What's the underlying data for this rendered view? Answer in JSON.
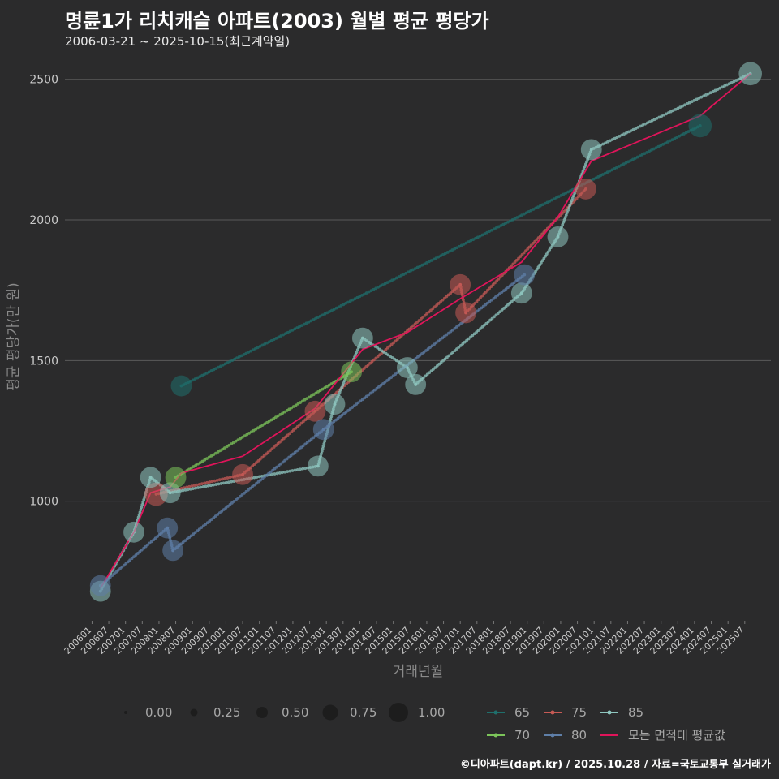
{
  "title": "명륜1가 리치캐슬 아파트(2003) 월별 평균 평당가",
  "subtitle": "2006-03-21 ~ 2025-10-15(최근계약일)",
  "footer": "©디아파트(dapt.kr) / 2025.10.28 / 자료=국토교통부 실거래가",
  "chart_data": {
    "type": "line",
    "xlabel": "거래년월",
    "ylabel": "평균 평당가(만 원)",
    "ylim": [
      575,
      2580
    ],
    "yticks": [
      1000,
      1500,
      2000,
      2500
    ],
    "xlim": [
      "200601",
      "202512"
    ],
    "xticks": [
      "200601",
      "200607",
      "200701",
      "200707",
      "200801",
      "200807",
      "200901",
      "200907",
      "201001",
      "201007",
      "201101",
      "201107",
      "201201",
      "201207",
      "201301",
      "201307",
      "201401",
      "201407",
      "201501",
      "201507",
      "201601",
      "201607",
      "201701",
      "201707",
      "201801",
      "201807",
      "201901",
      "201907",
      "202001",
      "202007",
      "202101",
      "202107",
      "202201",
      "202207",
      "202301",
      "202307",
      "202401",
      "202407",
      "202501",
      "202507"
    ],
    "size_legend": {
      "title": "",
      "values": [
        "0.00",
        "0.25",
        "0.50",
        "0.75",
        "1.00"
      ]
    },
    "series": [
      {
        "name": "65",
        "color": "#1f6f6c",
        "points": [
          {
            "x": "200809",
            "y": 1410,
            "s": 0.6
          },
          {
            "x": "202403",
            "y": 2335,
            "s": 0.7
          }
        ]
      },
      {
        "name": "75",
        "color": "#c65a55",
        "points": [
          {
            "x": "200712",
            "y": 1025,
            "s": 0.7
          },
          {
            "x": "201007",
            "y": 1095,
            "s": 0.6
          },
          {
            "x": "201209",
            "y": 1320,
            "s": 0.6
          },
          {
            "x": "201701",
            "y": 1770,
            "s": 0.6
          },
          {
            "x": "201703",
            "y": 1670,
            "s": 0.6
          },
          {
            "x": "202010",
            "y": 2110,
            "s": 0.6
          }
        ]
      },
      {
        "name": "85",
        "color": "#8fc7c0",
        "points": [
          {
            "x": "200604",
            "y": 680,
            "s": 0.6
          },
          {
            "x": "200704",
            "y": 890,
            "s": 0.6
          },
          {
            "x": "200710",
            "y": 1085,
            "s": 0.6
          },
          {
            "x": "200805",
            "y": 1030,
            "s": 0.6
          },
          {
            "x": "201210",
            "y": 1125,
            "s": 0.6
          },
          {
            "x": "201304",
            "y": 1345,
            "s": 0.6
          },
          {
            "x": "201402",
            "y": 1580,
            "s": 0.6
          },
          {
            "x": "201506",
            "y": 1475,
            "s": 0.6
          },
          {
            "x": "201509",
            "y": 1415,
            "s": 0.6
          },
          {
            "x": "201811",
            "y": 1740,
            "s": 0.6
          },
          {
            "x": "201912",
            "y": 1940,
            "s": 0.6
          },
          {
            "x": "202012",
            "y": 2250,
            "s": 0.6
          },
          {
            "x": "202509",
            "y": 2520,
            "s": 0.7
          }
        ]
      },
      {
        "name": "70",
        "color": "#7cc45a",
        "points": [
          {
            "x": "200807",
            "y": 1085,
            "s": 0.6
          },
          {
            "x": "201310",
            "y": 1460,
            "s": 0.6
          }
        ]
      },
      {
        "name": "80",
        "color": "#5f7fa8",
        "points": [
          {
            "x": "200604",
            "y": 700,
            "s": 0.6
          },
          {
            "x": "200804",
            "y": 905,
            "s": 0.6
          },
          {
            "x": "200806",
            "y": 825,
            "s": 0.6
          },
          {
            "x": "201212",
            "y": 1255,
            "s": 0.6
          },
          {
            "x": "201812",
            "y": 1805,
            "s": 0.6
          }
        ]
      }
    ],
    "mean_series": {
      "name": "모든 면적대 평균값",
      "color": "#e0145a",
      "points": [
        {
          "x": "200604",
          "y": 690
        },
        {
          "x": "200704",
          "y": 890
        },
        {
          "x": "200710",
          "y": 1030
        },
        {
          "x": "200805",
          "y": 1050
        },
        {
          "x": "200809",
          "y": 1100
        },
        {
          "x": "201007",
          "y": 1160
        },
        {
          "x": "201209",
          "y": 1330
        },
        {
          "x": "201402",
          "y": 1540
        },
        {
          "x": "201506",
          "y": 1600
        },
        {
          "x": "201701",
          "y": 1720
        },
        {
          "x": "201811",
          "y": 1850
        },
        {
          "x": "201912",
          "y": 2010
        },
        {
          "x": "202012",
          "y": 2210
        },
        {
          "x": "202403",
          "y": 2370
        },
        {
          "x": "202509",
          "y": 2520
        }
      ]
    }
  }
}
